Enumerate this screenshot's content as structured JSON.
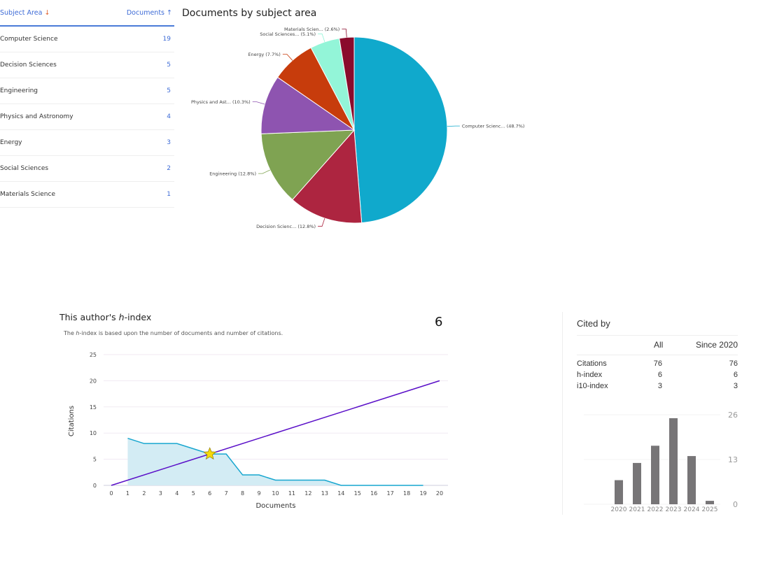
{
  "table": {
    "col_subject": "Subject Area",
    "col_docs": "Documents",
    "rows": [
      {
        "label": "Computer Science",
        "value": 19
      },
      {
        "label": "Decision Sciences",
        "value": 5
      },
      {
        "label": "Engineering",
        "value": 5
      },
      {
        "label": "Physics and Astronomy",
        "value": 4
      },
      {
        "label": "Energy",
        "value": 3
      },
      {
        "label": "Social Sciences",
        "value": 2
      },
      {
        "label": "Materials Science",
        "value": 1
      }
    ]
  },
  "chart_data": [
    {
      "type": "pie",
      "title": "Documents by subject area",
      "slices": [
        {
          "label": "Computer Scienc... (48.7%)",
          "value": 19,
          "color": "#10a9cc"
        },
        {
          "label": "Decision Scienc... (12.8%)",
          "value": 5,
          "color": "#ad2540"
        },
        {
          "label": "Engineering (12.8%)",
          "value": 5,
          "color": "#7fa352"
        },
        {
          "label": "Physics and Ast... (10.3%)",
          "value": 4,
          "color": "#8e54b0"
        },
        {
          "label": "Energy (7.7%)",
          "value": 3,
          "color": "#c73c0c"
        },
        {
          "label": "Social Sciences... (5.1%)",
          "value": 2,
          "color": "#93f5d8"
        },
        {
          "label": "Materials Scien... (2.6%)",
          "value": 1,
          "color": "#8a0b2c"
        }
      ]
    },
    {
      "type": "line",
      "xlabel": "Documents",
      "ylabel": "Citations",
      "xlim": [
        0,
        20
      ],
      "ylim": [
        0,
        25
      ],
      "yticks": [
        0,
        5,
        10,
        15,
        20,
        25
      ],
      "grid": true,
      "series": [
        {
          "x": [
            1,
            2,
            3,
            4,
            5,
            6,
            7,
            8,
            9,
            10,
            11,
            12,
            13,
            14,
            15,
            16,
            17,
            18,
            19
          ],
          "y": [
            9,
            8,
            8,
            8,
            7,
            6,
            6,
            2,
            2,
            1,
            1,
            1,
            1,
            0,
            0,
            0,
            0,
            0,
            0
          ],
          "color": "#17a6cf",
          "fill": "#d3ecf4"
        },
        {
          "x": [
            0,
            20
          ],
          "y": [
            0,
            20
          ],
          "color": "#5a0fc8"
        }
      ],
      "marker": {
        "x": 6,
        "y": 6,
        "shape": "star",
        "color": "#f5d90a"
      }
    },
    {
      "type": "bar",
      "categories": [
        "2020",
        "2021",
        "2022",
        "2023",
        "2024",
        "2025"
      ],
      "values": [
        7,
        12,
        17,
        25,
        14,
        1
      ],
      "yticks": [
        0,
        13,
        26
      ],
      "color": "#777577"
    }
  ],
  "hindex": {
    "title_prefix": "This author's ",
    "title_em": "h",
    "title_suffix": "-index",
    "sub_em": "h",
    "sub": "-index is based upon the number of documents and number of citations.",
    "sub_prefix": "The ",
    "value": "6"
  },
  "cited": {
    "title": "Cited by",
    "col_all": "All",
    "col_since": "Since 2020",
    "rows": [
      {
        "label": "Citations",
        "all": "76",
        "since": "76"
      },
      {
        "label": "h-index",
        "all": "6",
        "since": "6"
      },
      {
        "label": "i10-index",
        "all": "3",
        "since": "3"
      }
    ]
  }
}
